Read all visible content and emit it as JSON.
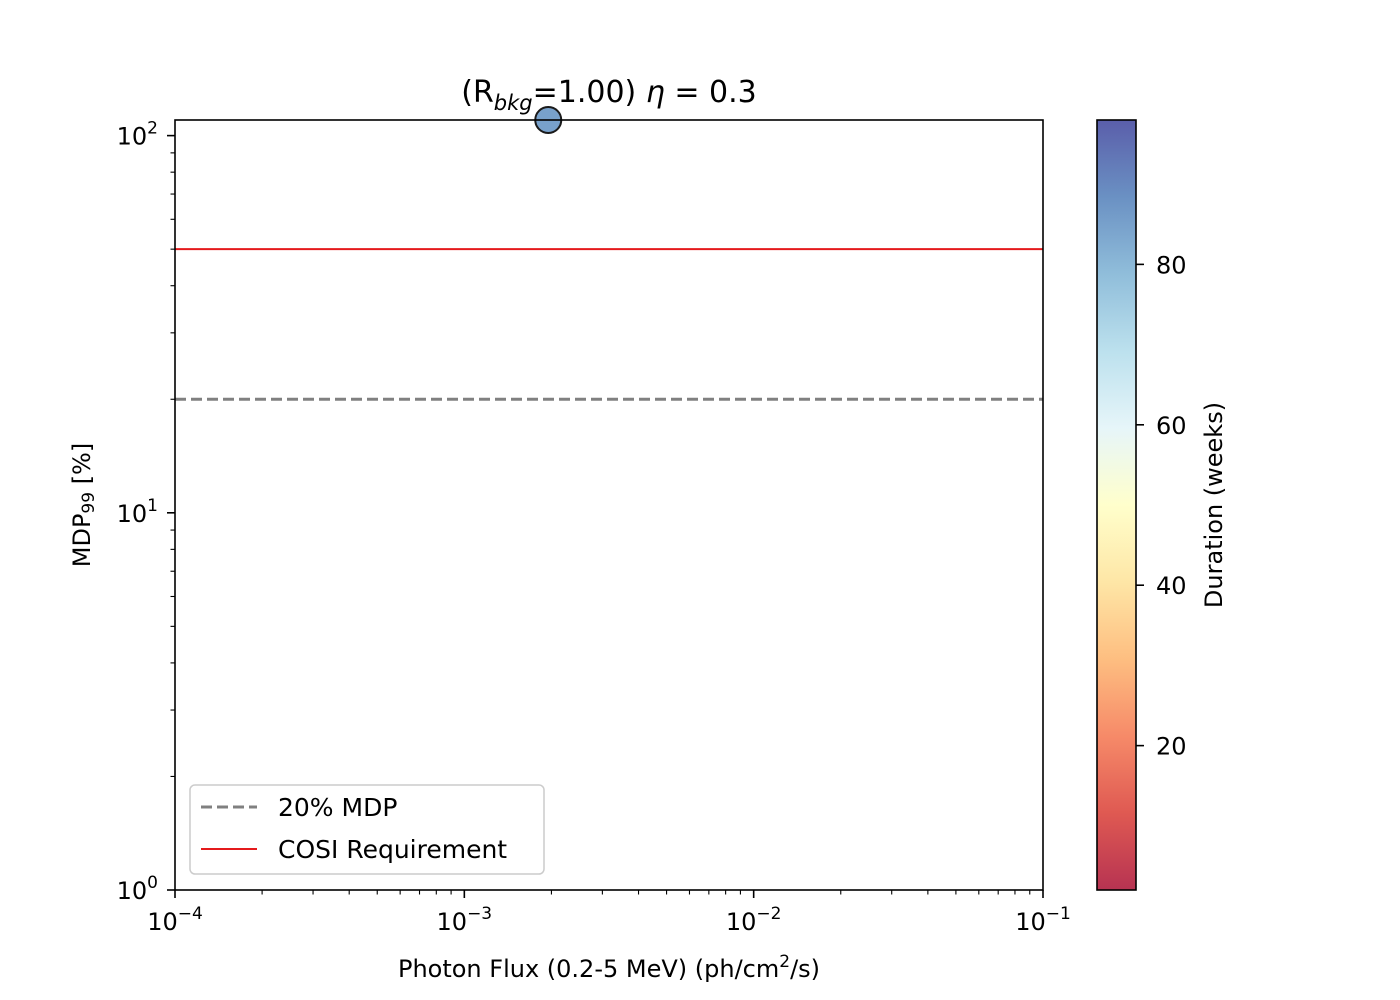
{
  "chart_data": {
    "type": "scatter",
    "title": {
      "open": "(R",
      "sub": "bkg",
      "value_text": "=1.00) ",
      "eta_symbol": "η",
      "eta_text": " = 0.3"
    },
    "xlabel": {
      "before_sup": "Photon Flux (0.2-5 MeV) (ph/cm",
      "sup": "2",
      "after_sup": "/s)"
    },
    "ylabel": {
      "main": "MDP",
      "sub": "99",
      "suffix": " [%]"
    },
    "x_scale": "log",
    "y_scale": "log",
    "xlim": [
      0.0001,
      0.1
    ],
    "ylim": [
      1,
      110
    ],
    "x_ticks": [
      {
        "value": 0.0001,
        "base": "10",
        "exp": "−4"
      },
      {
        "value": 0.001,
        "base": "10",
        "exp": "−3"
      },
      {
        "value": 0.01,
        "base": "10",
        "exp": "−2"
      },
      {
        "value": 0.1,
        "base": "10",
        "exp": "−1"
      }
    ],
    "y_ticks": [
      {
        "value": 1,
        "base": "10",
        "exp": "0"
      },
      {
        "value": 10,
        "base": "10",
        "exp": "1"
      },
      {
        "value": 100,
        "base": "10",
        "exp": "2"
      }
    ],
    "points": [
      {
        "x": 0.00195,
        "y": 110,
        "duration_weeks": 85
      }
    ],
    "hlines": [
      {
        "y": 20,
        "style": "dashed",
        "color": "#808080"
      },
      {
        "y": 50,
        "style": "solid",
        "color": "#e41a1c"
      }
    ],
    "legend": {
      "placement": "lower-left",
      "entries": [
        {
          "label": "20% MDP",
          "style": "dashed",
          "color": "#808080"
        },
        {
          "label": "COSI Requirement",
          "style": "solid",
          "color": "#e41a1c"
        }
      ]
    },
    "colorbar": {
      "label": "Duration (weeks)",
      "colormap": "RdYlBu",
      "range": [
        2,
        98
      ],
      "ticks": [
        20,
        40,
        60,
        80
      ],
      "colors": [
        "#a50026",
        "#d73027",
        "#f46d43",
        "#fdae61",
        "#fee090",
        "#ffffbf",
        "#e0f3f8",
        "#abd9e9",
        "#74add1",
        "#4575b4",
        "#313695"
      ],
      "alpha": 0.8
    },
    "grid": false
  }
}
